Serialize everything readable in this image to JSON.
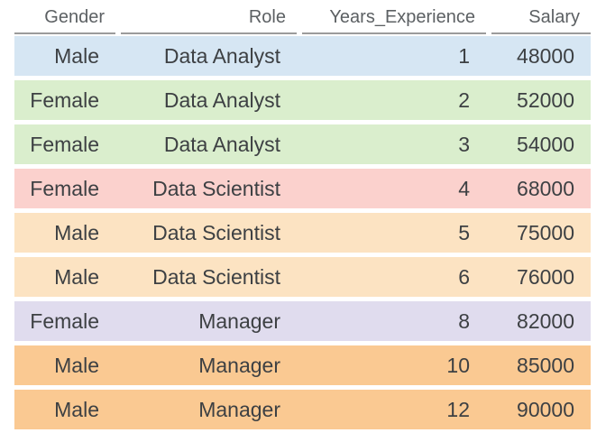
{
  "chart_data": {
    "type": "table",
    "title": "",
    "columns": [
      "Gender",
      "Role",
      "Years_Experience",
      "Salary"
    ],
    "rows": [
      [
        "Male",
        "Data Analyst",
        1,
        48000
      ],
      [
        "Female",
        "Data Analyst",
        2,
        52000
      ],
      [
        "Female",
        "Data Analyst",
        3,
        54000
      ],
      [
        "Female",
        "Data Scientist",
        4,
        68000
      ],
      [
        "Male",
        "Data Scientist",
        5,
        75000
      ],
      [
        "Male",
        "Data Scientist",
        6,
        76000
      ],
      [
        "Female",
        "Manager",
        8,
        82000
      ],
      [
        "Male",
        "Manager",
        10,
        85000
      ],
      [
        "Male",
        "Manager",
        12,
        90000
      ]
    ],
    "row_colors": [
      "#d6e6f3",
      "#daeecd",
      "#daeecd",
      "#fbd1cd",
      "#fce3c2",
      "#fce3c2",
      "#e0dcee",
      "#fac992",
      "#fac992"
    ],
    "layout_hints": {
      "header_alignment": "right",
      "cell_alignment": "right",
      "grid": "off",
      "row_gap_color": "#ffffff"
    }
  },
  "colors": {
    "header_text": "#5c6063",
    "cell_text": "#3d4043",
    "header_underline": "#9b9b9b",
    "background": "#ffffff"
  }
}
